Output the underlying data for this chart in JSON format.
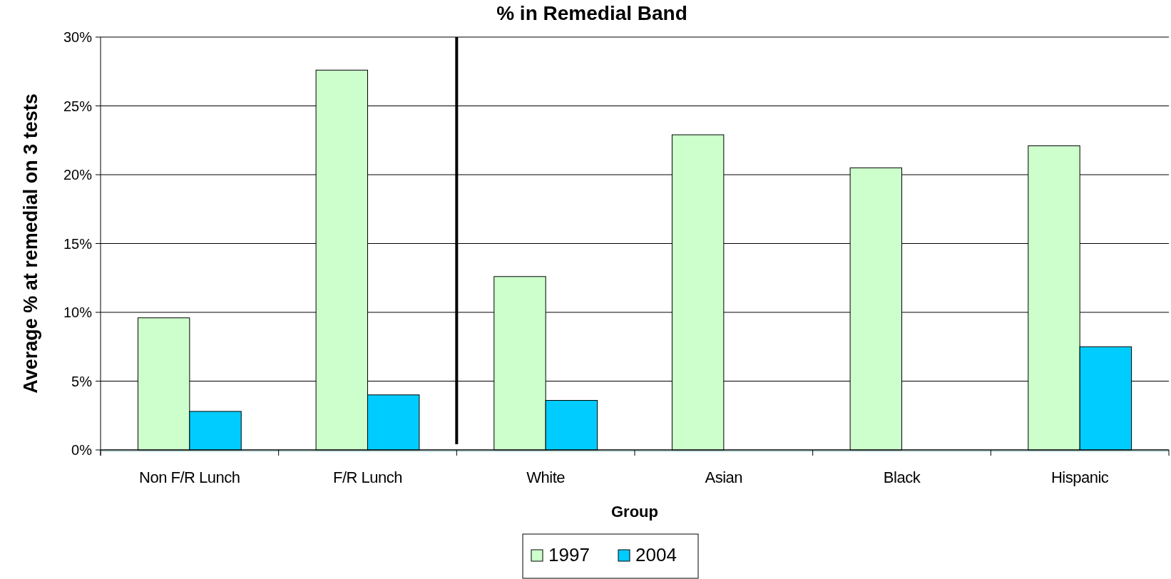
{
  "chart_data": {
    "type": "bar",
    "title": "% in Remedial Band",
    "xlabel": "Group",
    "ylabel": "Average % at remedial on 3 tests",
    "categories": [
      "Non F/R Lunch",
      "F/R Lunch",
      "White",
      "Asian",
      "Black",
      "Hispanic"
    ],
    "series": [
      {
        "name": "1997",
        "color": "#ccffcc",
        "values": [
          9.6,
          27.6,
          12.6,
          22.9,
          20.5,
          22.1
        ]
      },
      {
        "name": "2004",
        "color": "#00ccff",
        "values": [
          2.8,
          4.0,
          3.6,
          null,
          null,
          7.5
        ]
      }
    ],
    "ylim": [
      0,
      30
    ],
    "yticks": [
      {
        "value": 0,
        "label": "0%"
      },
      {
        "value": 5,
        "label": "5%"
      },
      {
        "value": 10,
        "label": "10%"
      },
      {
        "value": 15,
        "label": "15%"
      },
      {
        "value": 20,
        "label": "20%"
      },
      {
        "value": 25,
        "label": "25%"
      },
      {
        "value": 30,
        "label": "30%"
      }
    ],
    "grid": "y",
    "legend": "bottom"
  }
}
